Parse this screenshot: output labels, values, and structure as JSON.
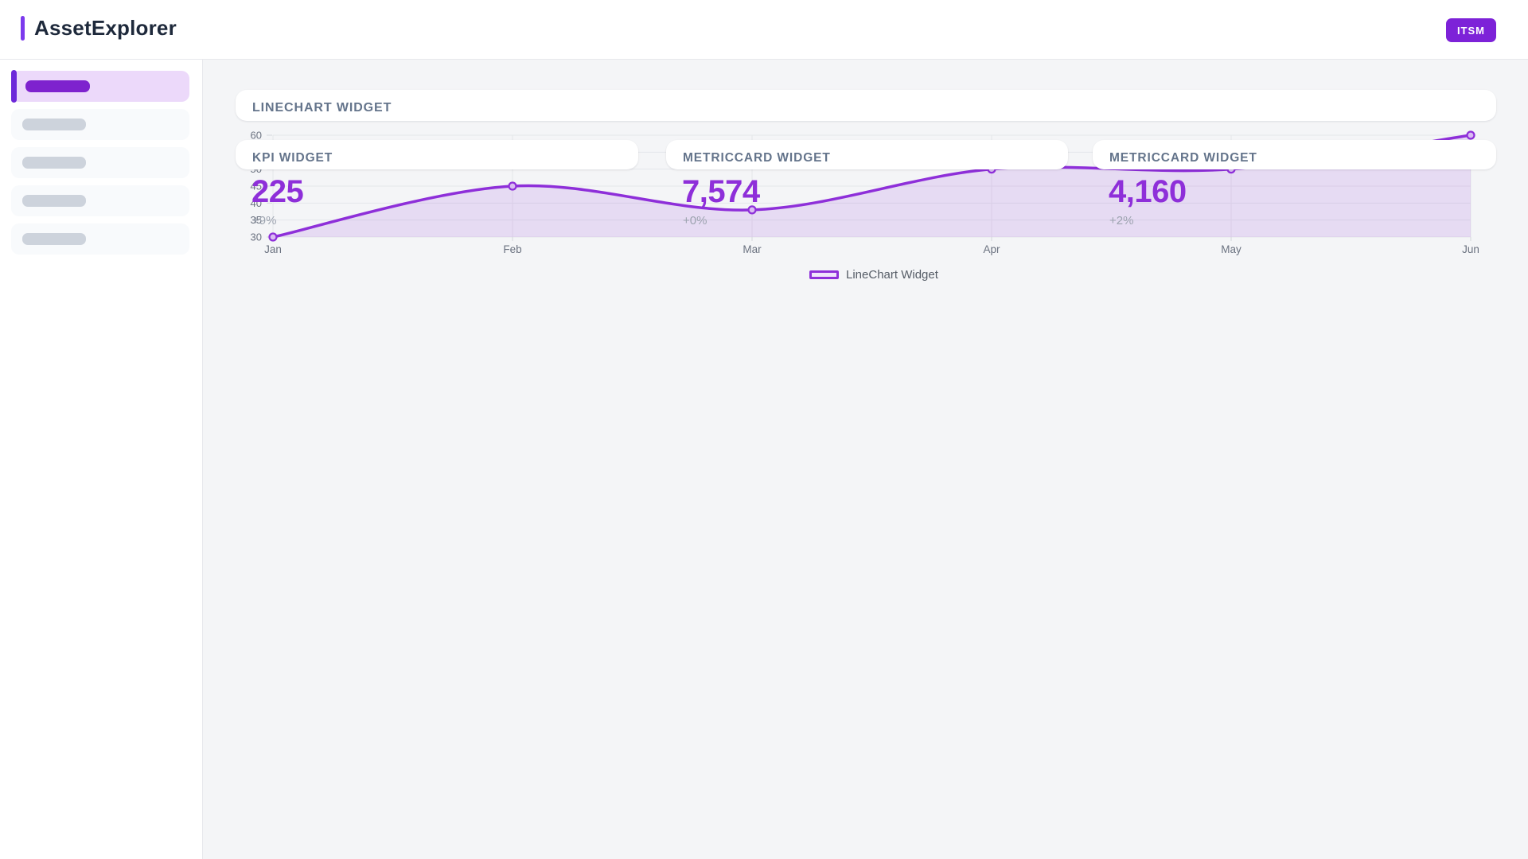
{
  "header": {
    "app_title": "AssetExplorer",
    "badge_label": "ITSM"
  },
  "sidebar": {
    "item_count": 5,
    "active_item_index": 0,
    "items_are_skeleton_placeholders": true
  },
  "widgets": {
    "linechart": {
      "title": "LINECHART WIDGET"
    },
    "kpi": {
      "title": "KPI WIDGET",
      "value": "225",
      "delta": "+9%"
    },
    "metric_a": {
      "title": "METRICCARD WIDGET",
      "value": "7,574",
      "delta": "+0%"
    },
    "metric_b": {
      "title": "METRICCARD WIDGET",
      "value": "4,160",
      "delta": "+2%"
    }
  },
  "chart_data": {
    "type": "area",
    "title": "LINECHART WIDGET",
    "x": [
      "Jan",
      "Feb",
      "Mar",
      "Apr",
      "May",
      "Jun"
    ],
    "series": [
      {
        "name": "LineChart Widget",
        "values": [
          30,
          45,
          38,
          50,
          50,
          60
        ]
      }
    ],
    "ylim": [
      30,
      60
    ],
    "yticks": [
      30,
      35,
      40,
      45,
      50,
      55,
      60
    ],
    "grid": true,
    "legend": {
      "position": "bottom",
      "label": "LineChart Widget"
    }
  },
  "colors": {
    "accent_purple": "#8e2fd9",
    "badge_purple": "#7d22d8",
    "brand_bar_purple": "#7c3aed",
    "sidebar_active_bg": "#ecd9fa",
    "sidebar_active_pill": "#7e22ce",
    "sidebar_accent_bar": "#6d28d9",
    "skeleton_gray": "#cdd3dc",
    "main_background": "#f4f5f7",
    "grid_line": "#e5e6ea",
    "axis_text": "#6b7280",
    "widget_title_text": "#64748b",
    "delta_text": "#9ca3af",
    "chart_fill": "rgba(142,47,217,0.13)",
    "dot_fill": "#d9bcf2"
  }
}
